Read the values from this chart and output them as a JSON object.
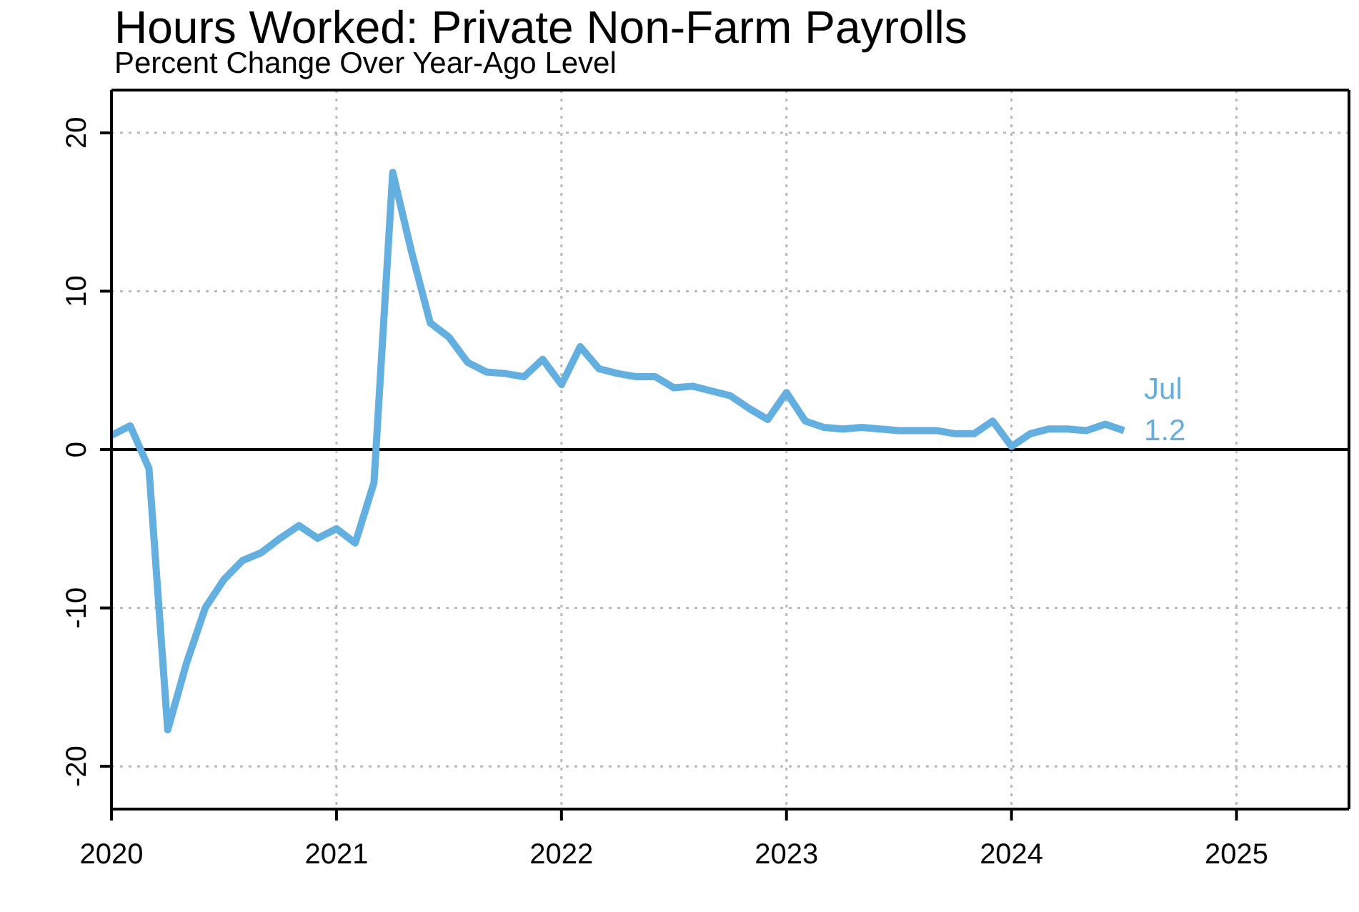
{
  "chart_data": {
    "type": "line",
    "title": "Hours Worked: Private Non-Farm Payrolls",
    "subtitle": "Percent Change Over Year-Ago Level",
    "x": [
      "2020-01",
      "2020-02",
      "2020-03",
      "2020-04",
      "2020-05",
      "2020-06",
      "2020-07",
      "2020-08",
      "2020-09",
      "2020-10",
      "2020-11",
      "2020-12",
      "2021-01",
      "2021-02",
      "2021-03",
      "2021-04",
      "2021-05",
      "2021-06",
      "2021-07",
      "2021-08",
      "2021-09",
      "2021-10",
      "2021-11",
      "2021-12",
      "2022-01",
      "2022-02",
      "2022-03",
      "2022-04",
      "2022-05",
      "2022-06",
      "2022-07",
      "2022-08",
      "2022-09",
      "2022-10",
      "2022-11",
      "2022-12",
      "2023-01",
      "2023-02",
      "2023-03",
      "2023-04",
      "2023-05",
      "2023-06",
      "2023-07",
      "2023-08",
      "2023-09",
      "2023-10",
      "2023-11",
      "2023-12",
      "2024-01",
      "2024-02",
      "2024-03",
      "2024-04",
      "2024-05",
      "2024-06",
      "2024-07"
    ],
    "series": [
      {
        "color": "#62afe0",
        "values": [
          0.9,
          1.5,
          -1.2,
          -17.7,
          -13.5,
          -10.0,
          -8.2,
          -7.0,
          -6.5,
          -5.6,
          -4.8,
          -5.6,
          -5.0,
          -5.9,
          -2.1,
          17.5,
          12.5,
          8.0,
          7.1,
          5.5,
          4.9,
          4.8,
          4.6,
          5.7,
          4.1,
          6.5,
          5.1,
          4.8,
          4.6,
          4.6,
          3.9,
          4.0,
          3.7,
          3.4,
          2.6,
          1.9,
          3.6,
          1.8,
          1.4,
          1.3,
          1.4,
          1.3,
          1.2,
          1.2,
          1.2,
          1.0,
          1.0,
          1.8,
          0.2,
          1.0,
          1.3,
          1.3,
          1.2,
          1.6,
          1.2
        ]
      }
    ],
    "xlim": [
      "2020-01",
      "2025-07"
    ],
    "xticks": [
      "2020",
      "2021",
      "2022",
      "2023",
      "2024",
      "2025"
    ],
    "ylim": [
      -22.7,
      22.7
    ],
    "yticks": [
      -20,
      -10,
      0,
      10,
      20
    ],
    "ref_lines": [
      {
        "axis": "y",
        "value": 0,
        "color": "#000000",
        "line_style": "solid"
      }
    ],
    "annotations": [
      {
        "text": "Jul",
        "x": "2024-07",
        "y": 1.2
      },
      {
        "text": "1.2",
        "x": "2024-07",
        "y": 1.2
      }
    ],
    "grid": true,
    "line_style": "solid",
    "marker": "none"
  }
}
